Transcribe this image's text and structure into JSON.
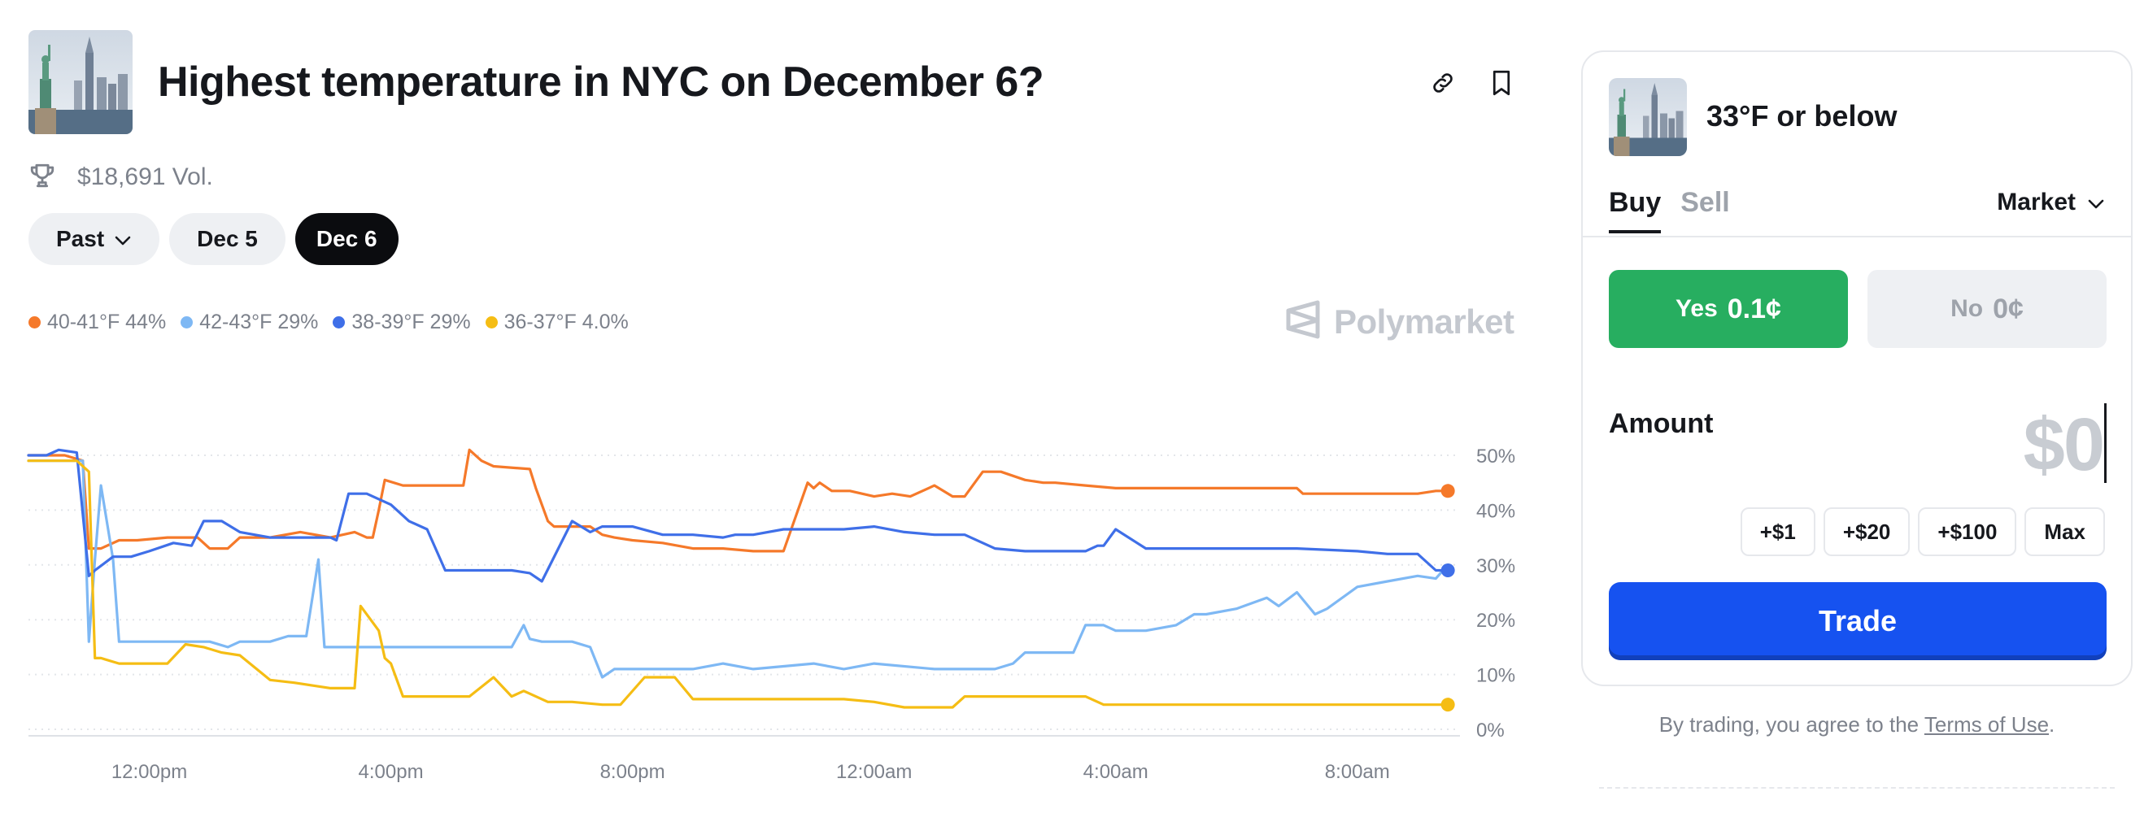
{
  "event": {
    "title": "Highest temperature in NYC on December 6?",
    "volume": "$18,691 Vol.",
    "thumbnail": "statue-of-liberty-nyc-skyline-image",
    "header_icons": [
      "link-icon",
      "bookmark-icon"
    ]
  },
  "date_filters": {
    "items": [
      {
        "label": "Past",
        "dropdown": true
      },
      {
        "label": "Dec 5"
      },
      {
        "label": "Dec 6",
        "active": true
      }
    ]
  },
  "legend": [
    {
      "label": "40-41°F 44%",
      "color": "#f5792a"
    },
    {
      "label": "42-43°F 29%",
      "color": "#7eb8f4"
    },
    {
      "label": "38-39°F 29%",
      "color": "#3f6fe8"
    },
    {
      "label": "36-37°F 4.0%",
      "color": "#f5bd14"
    }
  ],
  "watermark": "Polymarket",
  "chart_data": {
    "type": "line",
    "x_ticks": [
      "12:00pm",
      "4:00pm",
      "8:00pm",
      "12:00am",
      "4:00am",
      "8:00am"
    ],
    "y_ticks": [
      "0%",
      "10%",
      "20%",
      "30%",
      "40%",
      "50%"
    ],
    "ylim": [
      0,
      50
    ],
    "y_axis_position": "right",
    "grid": "horizontal-dotted",
    "x_unit": "hours since 10:00am Dec 5",
    "xlim": [
      0,
      23.7
    ],
    "series": [
      {
        "name": "40-41°F",
        "color": "#f5792a",
        "x": [
          0,
          0.6,
          0.9,
          1.0,
          1.2,
          1.5,
          1.8,
          2.3,
          2.8,
          3.0,
          3.3,
          3.5,
          4.0,
          4.5,
          5.0,
          5.4,
          5.6,
          5.7,
          5.8,
          5.9,
          6.2,
          6.8,
          7.2,
          7.3,
          7.5,
          7.7,
          8.3,
          8.4,
          8.6,
          8.7,
          9.0,
          9.3,
          9.5,
          9.7,
          10.0,
          10.5,
          11.0,
          11.5,
          12.0,
          12.5,
          12.9,
          13.0,
          13.1,
          13.3,
          13.6,
          14.0,
          14.3,
          14.6,
          15.0,
          15.3,
          15.5,
          15.8,
          16.1,
          16.5,
          16.8,
          17.0,
          17.5,
          18.0,
          19.0,
          20.0,
          21.0,
          21.1,
          22.0,
          23.0,
          23.3,
          23.5
        ],
        "values": [
          50,
          50,
          49,
          33,
          33,
          34.5,
          34.5,
          35,
          35,
          33,
          33,
          35,
          35,
          36,
          35,
          36,
          35,
          35,
          40,
          45.5,
          44.5,
          44.5,
          44.5,
          51,
          49,
          48,
          47.5,
          44,
          38,
          37,
          37,
          37,
          35.5,
          35,
          34.5,
          34,
          33,
          33,
          32.5,
          32.5,
          45,
          44,
          45,
          43.5,
          43.5,
          42.5,
          43,
          42.5,
          44.5,
          42.5,
          42.5,
          47,
          47,
          45.5,
          45,
          45,
          44.5,
          44,
          44,
          44,
          44,
          43,
          43,
          43,
          43.5,
          43.5
        ]
      },
      {
        "name": "42-43°F",
        "color": "#7eb8f4",
        "x": [
          0,
          0.6,
          0.9,
          1.0,
          1.1,
          1.2,
          1.4,
          1.5,
          1.7,
          2.0,
          3.0,
          3.3,
          3.5,
          4.0,
          4.3,
          4.5,
          4.6,
          4.8,
          4.9,
          5.0,
          6.0,
          7.0,
          8.0,
          8.2,
          8.3,
          8.5,
          9.0,
          9.3,
          9.5,
          9.7,
          10.0,
          10.5,
          11.0,
          11.5,
          12.0,
          13.0,
          13.5,
          14.0,
          15.0,
          16.0,
          16.3,
          16.5,
          17.0,
          17.3,
          17.5,
          17.8,
          18.0,
          18.5,
          19.0,
          19.3,
          19.5,
          20.0,
          20.5,
          20.7,
          21.0,
          21.3,
          21.5,
          22.0,
          22.5,
          23.0,
          23.3,
          23.5
        ],
        "values": [
          49,
          49,
          49,
          16,
          31,
          44.5,
          31,
          16,
          16,
          16,
          16,
          15,
          16,
          16,
          17,
          17,
          17,
          31,
          15,
          15,
          15,
          15,
          15,
          19,
          16.5,
          16,
          16,
          15,
          9.5,
          11,
          11,
          11,
          11,
          12,
          11,
          12,
          11,
          12,
          11,
          11,
          12,
          14,
          14,
          14,
          19,
          19,
          18,
          18,
          19,
          21,
          21,
          22,
          24,
          22.5,
          25,
          21,
          22,
          26,
          27,
          28,
          27.5,
          30
        ]
      },
      {
        "name": "38-39°F",
        "color": "#3f6fe8",
        "x": [
          0,
          0.3,
          0.5,
          0.8,
          1.0,
          1.1,
          1.4,
          1.7,
          2.0,
          2.4,
          2.7,
          2.9,
          3.2,
          3.5,
          4.0,
          4.5,
          5.0,
          5.1,
          5.3,
          5.6,
          6.0,
          6.3,
          6.6,
          6.9,
          7.2,
          7.6,
          8.0,
          8.3,
          8.5,
          9.0,
          9.3,
          9.5,
          9.7,
          10.0,
          10.5,
          11.0,
          11.5,
          11.7,
          12.0,
          12.5,
          13.0,
          13.2,
          13.5,
          14.0,
          14.5,
          15.0,
          15.5,
          16.0,
          16.5,
          17.0,
          17.5,
          17.7,
          17.8,
          18.0,
          18.5,
          19.0,
          20.0,
          21.0,
          22.0,
          22.5,
          23.0,
          23.3,
          23.5
        ],
        "values": [
          50,
          50,
          51,
          50.5,
          28,
          29,
          31.5,
          31.5,
          32.5,
          34,
          33.5,
          38,
          38,
          36,
          35,
          35,
          35,
          34.5,
          43,
          43,
          41,
          38,
          36.5,
          29,
          29,
          29,
          29,
          28.5,
          27,
          38,
          36,
          37,
          37,
          37,
          35.5,
          35.5,
          35,
          35.5,
          35.5,
          36.5,
          36.5,
          36.5,
          36.5,
          37,
          36,
          35.5,
          35.5,
          33,
          32.5,
          32.5,
          32.5,
          33.5,
          33.5,
          36.5,
          33,
          33,
          33,
          33,
          32.5,
          32,
          32,
          29,
          29
        ]
      },
      {
        "name": "36-37°F",
        "color": "#f5bd14",
        "x": [
          0,
          0.6,
          0.8,
          1.0,
          1.1,
          1.2,
          1.5,
          2.0,
          2.3,
          2.6,
          2.9,
          3.2,
          3.5,
          4.0,
          4.4,
          4.7,
          5.0,
          5.4,
          5.5,
          5.8,
          5.9,
          6.0,
          6.2,
          6.5,
          6.8,
          7.0,
          7.3,
          7.7,
          8.0,
          8.2,
          8.3,
          8.5,
          8.6,
          9.0,
          9.5,
          9.8,
          10.2,
          10.5,
          10.7,
          11.0,
          11.5,
          12.0,
          13.0,
          13.5,
          14.0,
          14.5,
          14.7,
          15.0,
          15.3,
          15.5,
          16.0,
          16.5,
          17.0,
          17.5,
          17.8,
          18.0,
          18.5,
          19.0,
          20.0,
          21.0,
          22.0,
          23.0,
          23.5
        ],
        "values": [
          49,
          49,
          49,
          47,
          13,
          13,
          12,
          12,
          12,
          15.5,
          15,
          14,
          13.5,
          9,
          8.5,
          8,
          7.5,
          7.5,
          22.5,
          18,
          13,
          12,
          6,
          6,
          6,
          6,
          6,
          9.5,
          6,
          7,
          6.5,
          5.5,
          5,
          5,
          4.5,
          4.5,
          9.5,
          9.5,
          9.5,
          5.5,
          5.5,
          5.5,
          5.5,
          5.5,
          5,
          4,
          4,
          4,
          4,
          6,
          6,
          6,
          6,
          6,
          4.5,
          4.5,
          4.5,
          4.5,
          4.5,
          4.5,
          4.5,
          4.5,
          4.5
        ]
      }
    ]
  },
  "trade_panel": {
    "outcome": "33°F or below",
    "tabs": [
      {
        "label": "Buy",
        "active": true
      },
      {
        "label": "Sell"
      }
    ],
    "order_type": "Market",
    "yes": {
      "label": "Yes",
      "price": "0.1¢"
    },
    "no": {
      "label": "No",
      "price": "0¢"
    },
    "amount_label": "Amount",
    "amount_value": "$0",
    "quick_amounts": [
      "+$1",
      "+$20",
      "+$100",
      "Max"
    ],
    "trade_label": "Trade",
    "terms_prefix": "By trading, you agree to the ",
    "terms_link": "Terms of Use",
    "terms_suffix": "."
  },
  "colors": {
    "accent_blue": "#1652f0",
    "yes_green": "#27ae60",
    "muted_text": "#7c818b"
  }
}
